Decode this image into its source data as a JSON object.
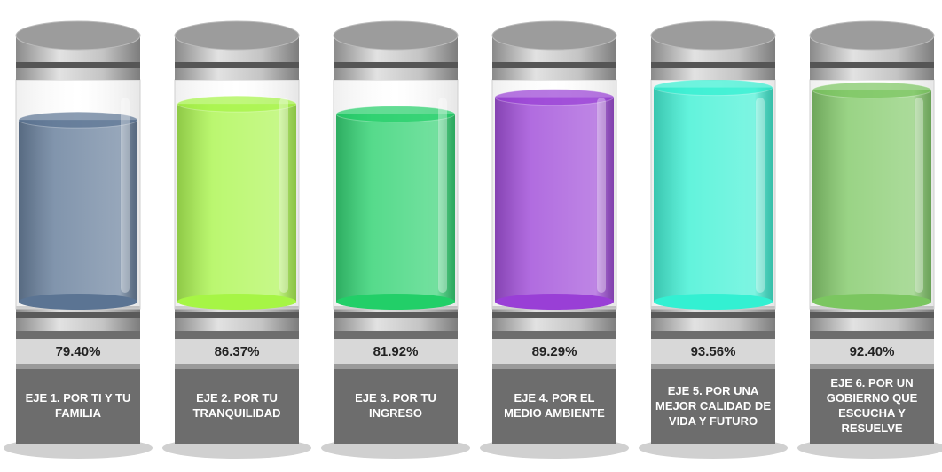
{
  "chart_data": {
    "type": "cylinder",
    "categories": [
      "EJE 1. POR TI Y TU FAMILIA",
      "EJE 2. POR TU TRANQUILIDAD",
      "EJE 3. POR TU INGRESO",
      "EJE 4. POR EL MEDIO AMBIENTE",
      "EJE 5. POR UNA MEJOR CALIDAD DE VIDA Y FUTURO",
      "EJE 6. POR UN GOBIERNO QUE ESCUCHA Y RESUELVE"
    ],
    "values": [
      79.4,
      86.37,
      81.92,
      89.29,
      93.56,
      92.4
    ],
    "value_labels": [
      "79.40%",
      "86.37%",
      "81.92%",
      "89.29%",
      "93.56%",
      "92.40%"
    ],
    "colors": [
      "#5b7493",
      "#a6f545",
      "#22cf68",
      "#993fd6",
      "#33f0d2",
      "#7bc660"
    ],
    "ylim": [
      0,
      100
    ]
  }
}
